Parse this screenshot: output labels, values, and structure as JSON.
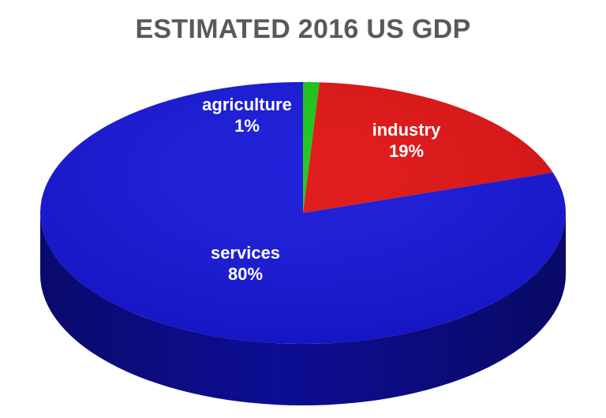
{
  "chart_data": {
    "type": "pie",
    "title": "ESTIMATED 2016 US GDP",
    "categories": [
      "agriculture",
      "industry",
      "services"
    ],
    "values": [
      1,
      19,
      80
    ],
    "value_labels": [
      "1%",
      "19%",
      "80%"
    ],
    "colors": {
      "agriculture": "#17C617",
      "industry": "#E01010",
      "services": "#1414D8"
    },
    "style": "3d",
    "legend": "none"
  }
}
